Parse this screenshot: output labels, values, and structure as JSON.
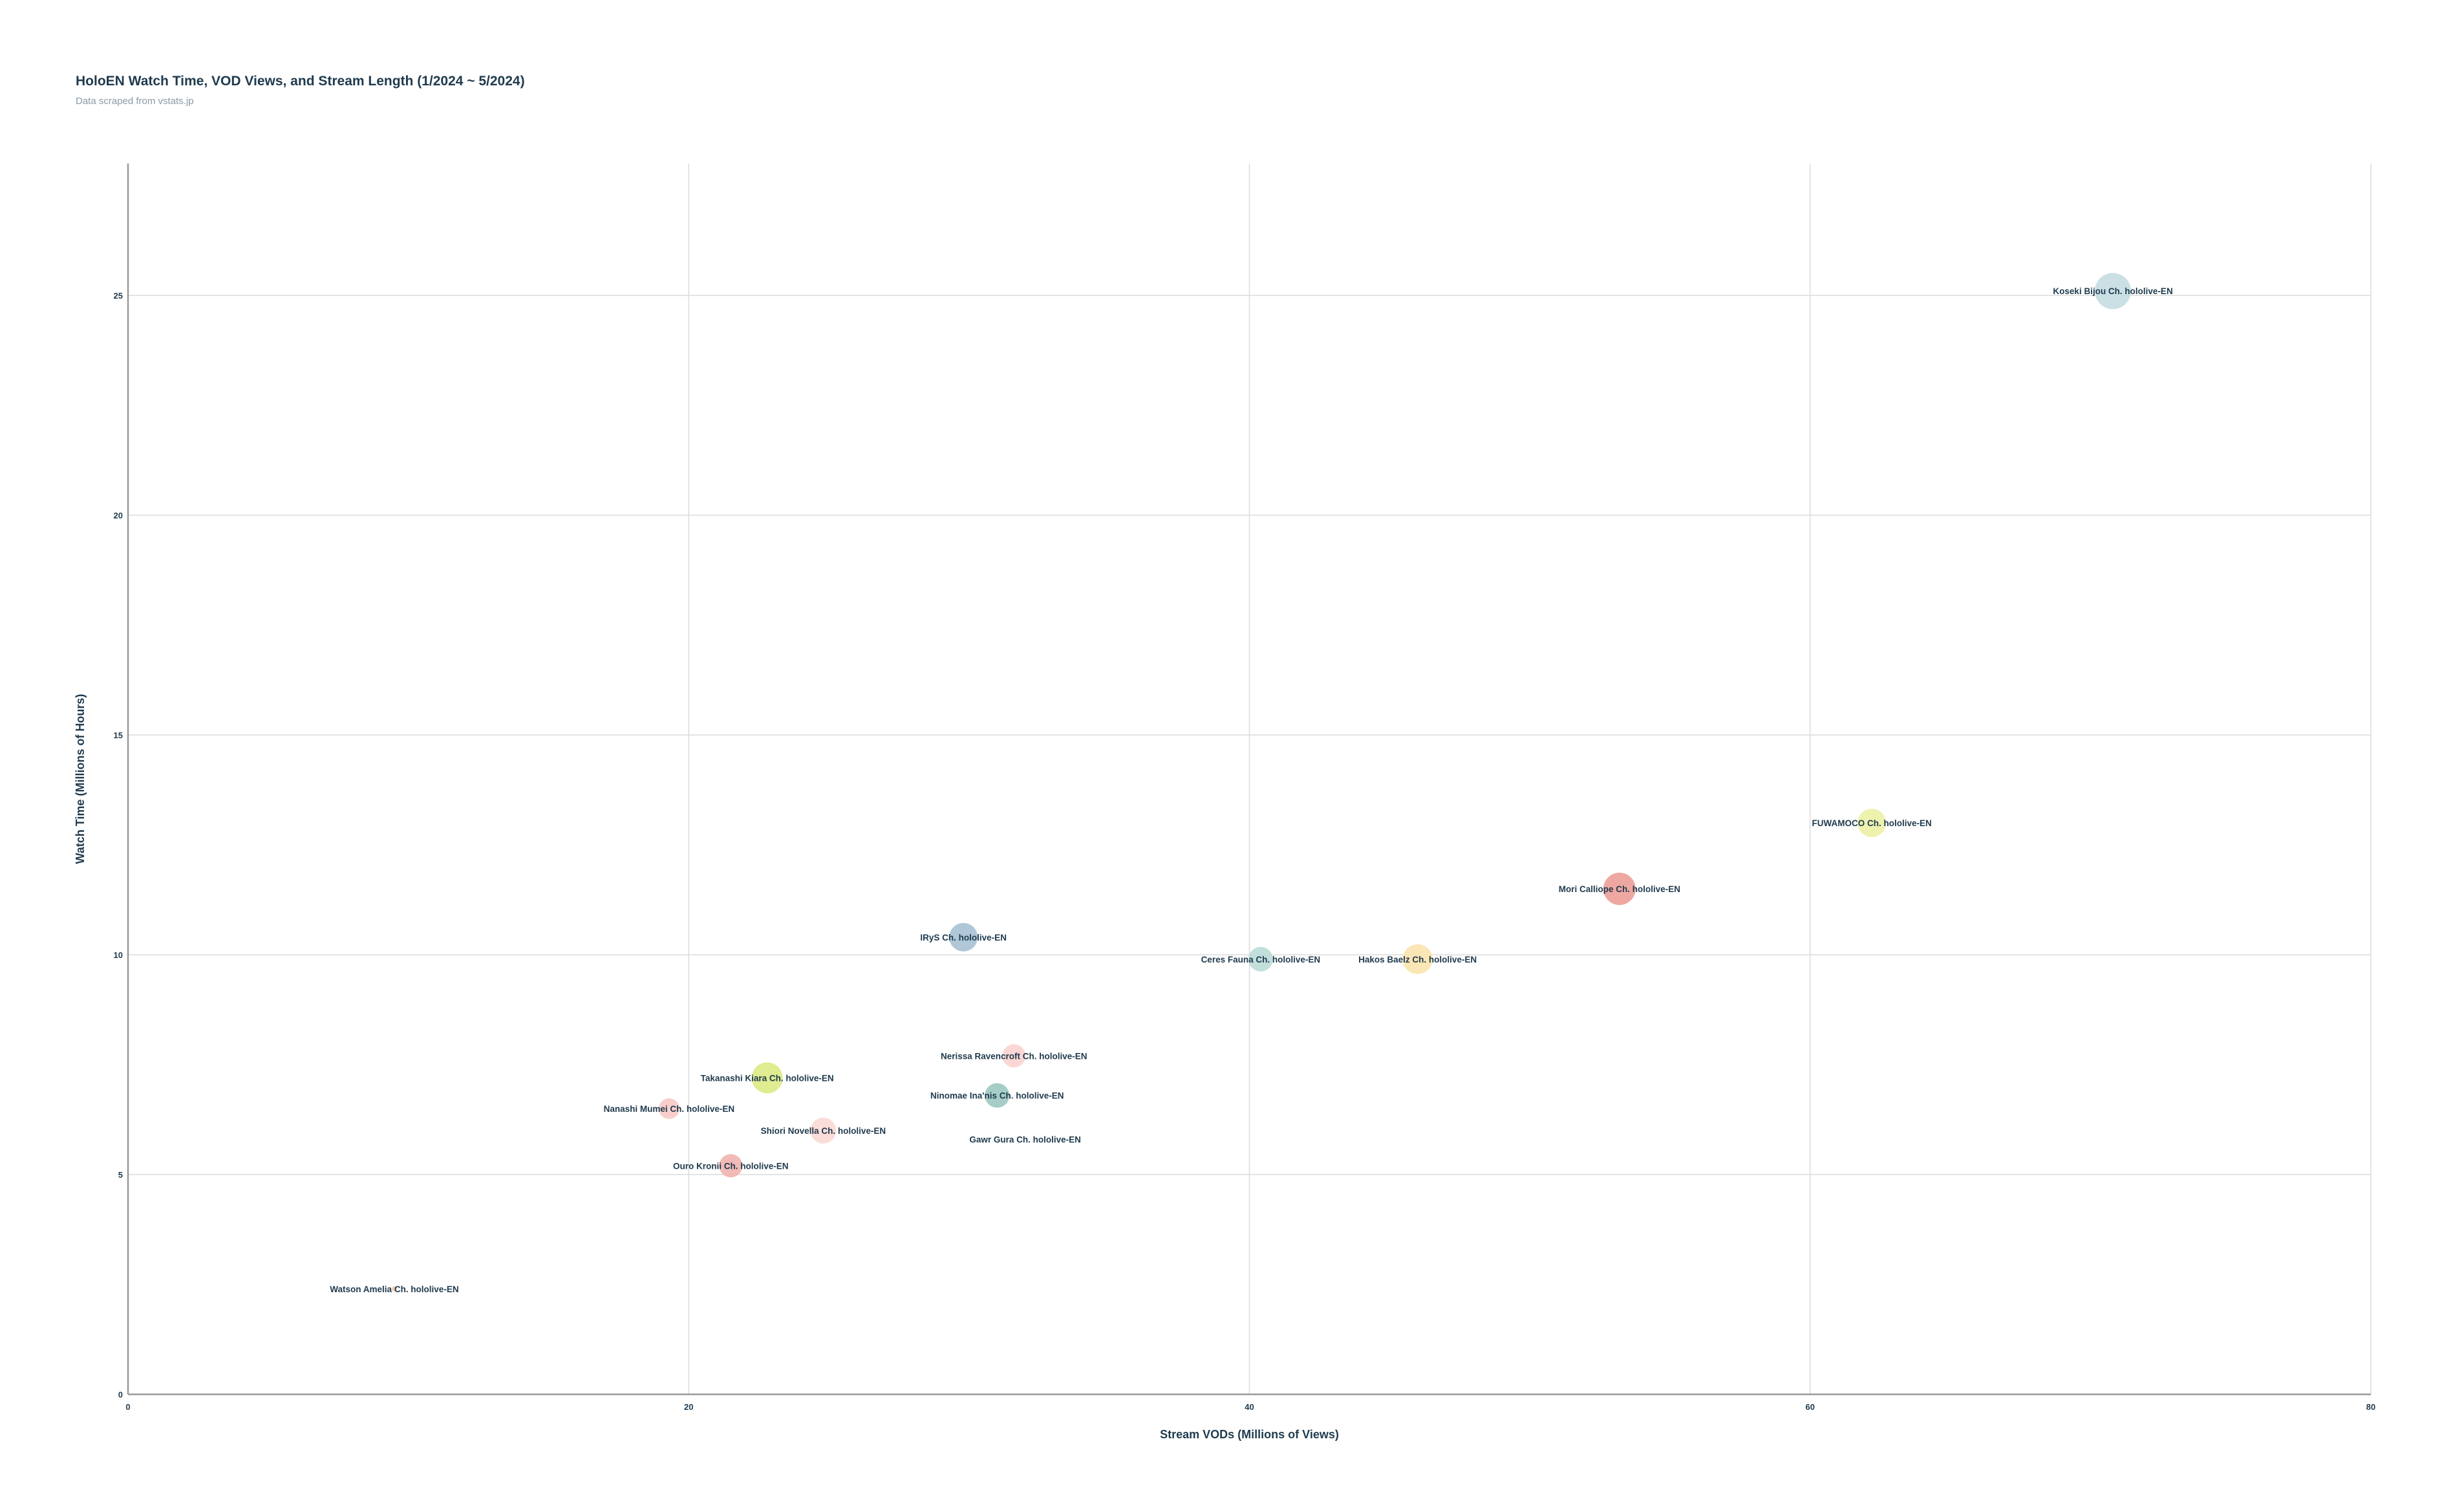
{
  "header": {
    "title": "HoloEN Watch Time, VOD Views, and Stream Length (1/2024 ~ 5/2024)",
    "subtitle": "Data scraped from vstats.jp"
  },
  "chart_data": {
    "type": "scatter",
    "title": "HoloEN Watch Time, VOD Views, and Stream Length (1/2024 ~ 5/2024)",
    "subtitle": "Data scraped from vstats.jp",
    "xlabel": "Stream VODs (Millions of Views)",
    "ylabel": "Watch Time (Millions of Hours)",
    "xlim": [
      0,
      80
    ],
    "ylim": [
      0,
      28
    ],
    "xticks": [
      0,
      20,
      40,
      60,
      80
    ],
    "yticks": [
      0,
      5,
      10,
      15,
      20,
      25
    ],
    "grid": true,
    "bubble_size": "stream length",
    "points": [
      {
        "name": "Koseki Bijou Ch. hololive-EN",
        "x": 70.8,
        "y": 25.1,
        "size": 28,
        "color": "#c5dde2"
      },
      {
        "name": "FUWAMOCO Ch. hololive-EN",
        "x": 62.2,
        "y": 13.0,
        "size": 22,
        "color": "#ecf1a6"
      },
      {
        "name": "Mori Calliope Ch. hololive-EN",
        "x": 53.2,
        "y": 11.5,
        "size": 25,
        "color": "#ec9e97"
      },
      {
        "name": "IRyS Ch. hololive-EN",
        "x": 29.8,
        "y": 10.4,
        "size": 22,
        "color": "#a6c1d1"
      },
      {
        "name": "Ceres Fauna Ch. hololive-EN",
        "x": 40.4,
        "y": 9.9,
        "size": 19,
        "color": "#bcdcd7"
      },
      {
        "name": "Hakos Baelz Ch. hololive-EN",
        "x": 46.0,
        "y": 9.9,
        "size": 23,
        "color": "#fbe3ad"
      },
      {
        "name": "Nerissa Ravencroft Ch. hololive-EN",
        "x": 31.6,
        "y": 7.7,
        "size": 18,
        "color": "#f9d3d0"
      },
      {
        "name": "Takanashi Kiara Ch. hololive-EN",
        "x": 22.8,
        "y": 7.2,
        "size": 24,
        "color": "#dbea84"
      },
      {
        "name": "Ninomae Ina'nis Ch. hololive-EN",
        "x": 31.0,
        "y": 6.8,
        "size": 19,
        "color": "#9cc8c0"
      },
      {
        "name": "Nanashi Mumei Ch. hololive-EN",
        "x": 19.3,
        "y": 6.5,
        "size": 16,
        "color": "#f7c9c6"
      },
      {
        "name": "Shiori Novella Ch. hololive-EN",
        "x": 24.8,
        "y": 6.0,
        "size": 20,
        "color": "#fbd9d4"
      },
      {
        "name": "Gawr Gura Ch. hololive-EN",
        "x": 32.0,
        "y": 5.8,
        "size": 0,
        "color": "#ffffff"
      },
      {
        "name": "Ouro Kronii Ch. hololive-EN",
        "x": 21.5,
        "y": 5.2,
        "size": 18,
        "color": "#efb2ae"
      },
      {
        "name": "Watson Amelia Ch. hololive-EN",
        "x": 9.5,
        "y": 2.4,
        "size": 4,
        "color": "#f7c7a2"
      }
    ]
  }
}
